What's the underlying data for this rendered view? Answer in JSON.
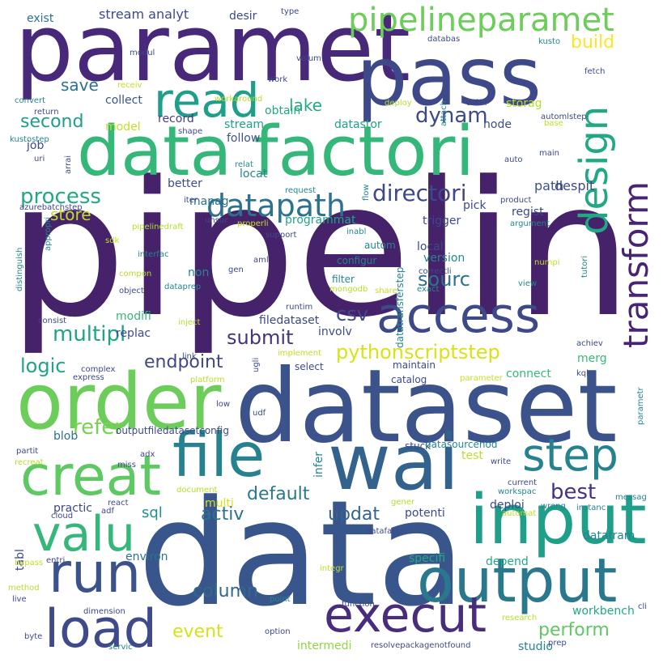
{
  "words": [
    {
      "text": "pipelin",
      "color": "#46226b"
    },
    {
      "text": "data",
      "color": "#39568c"
    },
    {
      "text": "dataset",
      "color": "#3b528b"
    },
    {
      "text": "paramet",
      "color": "#482878"
    },
    {
      "text": "pass",
      "color": "#3e4989"
    },
    {
      "text": "data factori",
      "color": "#35b779"
    },
    {
      "text": "order",
      "color": "#6ccd5a"
    },
    {
      "text": "wai",
      "color": "#33638d"
    },
    {
      "text": "file",
      "color": "#26828e"
    },
    {
      "text": "input",
      "color": "#1f9e89"
    },
    {
      "text": "output",
      "color": "#2a788e"
    },
    {
      "text": "creat",
      "color": "#5ec962"
    },
    {
      "text": "run",
      "color": "#3b528b"
    },
    {
      "text": "valu",
      "color": "#35b779"
    },
    {
      "text": "load",
      "color": "#3e4a89"
    },
    {
      "text": "execut",
      "color": "#472d7b"
    },
    {
      "text": "step",
      "color": "#26828e"
    },
    {
      "text": "access",
      "color": "#3e4989"
    },
    {
      "text": "read",
      "color": "#1f9e89"
    },
    {
      "text": "design",
      "color": "#22a884"
    },
    {
      "text": "transform",
      "color": "#482475"
    },
    {
      "text": "pipelineparamet",
      "color": "#6ccd5a"
    },
    {
      "text": "datapath",
      "color": "#2c728e"
    },
    {
      "text": "directori",
      "color": "#3e4989"
    },
    {
      "text": "process",
      "color": "#22a884"
    },
    {
      "text": "multipl",
      "color": "#20a486"
    },
    {
      "text": "submit",
      "color": "#46337f"
    },
    {
      "text": "pythonscriptstep",
      "color": "#d8e219"
    },
    {
      "text": "csv",
      "color": "#3e4989"
    },
    {
      "text": "logic",
      "color": "#20a486"
    },
    {
      "text": "endpoint",
      "color": "#404688"
    },
    {
      "text": "refer",
      "color": "#7ad151"
    },
    {
      "text": "default",
      "color": "#2a788e"
    },
    {
      "text": "best",
      "color": "#46337f"
    },
    {
      "text": "activ",
      "color": "#2c728e"
    },
    {
      "text": "updat",
      "color": "#33638d"
    },
    {
      "text": "sql",
      "color": "#21918c"
    },
    {
      "text": "column",
      "color": "#31688e"
    },
    {
      "text": "event",
      "color": "#d8e219"
    },
    {
      "text": "perform",
      "color": "#5ec962"
    },
    {
      "text": "dynam",
      "color": "#3e4989"
    },
    {
      "text": "lake",
      "color": "#22a884"
    },
    {
      "text": "save",
      "color": "#2c728e"
    },
    {
      "text": "second",
      "color": "#1f9e89"
    },
    {
      "text": "build",
      "color": "#fde725"
    },
    {
      "text": "stream analyt",
      "color": "#3e4989"
    },
    {
      "text": "store",
      "color": "#bddf26"
    },
    {
      "text": "sourc",
      "color": "#2c728e"
    },
    {
      "text": "path",
      "color": "#3b528b"
    },
    {
      "text": "despit",
      "color": "#3e4989"
    },
    {
      "text": "storag",
      "color": "#b5de2b"
    },
    {
      "text": "collect",
      "color": "#39568c"
    },
    {
      "text": "record",
      "color": "#433e85"
    },
    {
      "text": "obtain",
      "color": "#22a884"
    },
    {
      "text": "stream",
      "color": "#1f9e89"
    },
    {
      "text": "datastor",
      "color": "#1f9e89"
    },
    {
      "text": "node",
      "color": "#3e4989"
    },
    {
      "text": "follow",
      "color": "#3b528b"
    },
    {
      "text": "locat",
      "color": "#25858e"
    },
    {
      "text": "better",
      "color": "#3e4989"
    },
    {
      "text": "manag",
      "color": "#2c728e"
    },
    {
      "text": "programmat",
      "color": "#20a486"
    },
    {
      "text": "trigger",
      "color": "#3e4989"
    },
    {
      "text": "pick",
      "color": "#3e4989"
    },
    {
      "text": "regist",
      "color": "#3e4989"
    },
    {
      "text": "local",
      "color": "#3e4989"
    },
    {
      "text": "version",
      "color": "#25858e"
    },
    {
      "text": "modifi",
      "color": "#35b779"
    },
    {
      "text": "model",
      "color": "#c2df23"
    },
    {
      "text": "exist",
      "color": "#2c728e"
    },
    {
      "text": "desir",
      "color": "#3e4989"
    },
    {
      "text": "job",
      "color": "#3e4989"
    },
    {
      "text": "filedataset",
      "color": "#3e4989"
    },
    {
      "text": "involv",
      "color": "#3e4989"
    },
    {
      "text": "replac",
      "color": "#3e4989"
    },
    {
      "text": "merg",
      "color": "#38b977"
    },
    {
      "text": "connect",
      "color": "#38b977"
    },
    {
      "text": "select",
      "color": "#3e4989"
    },
    {
      "text": "maintain",
      "color": "#3e4989"
    },
    {
      "text": "catalog",
      "color": "#3e4989"
    },
    {
      "text": "outputfiledatasetconfig",
      "color": "#3e4989"
    },
    {
      "text": "blob",
      "color": "#2c728e"
    },
    {
      "text": "practic",
      "color": "#3e4989"
    },
    {
      "text": "multi",
      "color": "#d8e219"
    },
    {
      "text": "environ",
      "color": "#2c728e"
    },
    {
      "text": "deploi",
      "color": "#3e4989"
    },
    {
      "text": "potenti",
      "color": "#3e4989"
    },
    {
      "text": "specifi",
      "color": "#22a884"
    },
    {
      "text": "depend",
      "color": "#22a884"
    },
    {
      "text": "datafram",
      "color": "#25858e"
    },
    {
      "text": "workbench",
      "color": "#22a884"
    },
    {
      "text": "studio",
      "color": "#25858e"
    },
    {
      "text": "intermedi",
      "color": "#8fd744"
    },
    {
      "text": "test",
      "color": "#bddf26"
    },
    {
      "text": "tabl",
      "color": "#3e4989"
    },
    {
      "text": "non",
      "color": "#25858e"
    },
    {
      "text": "infer",
      "color": "#25858e"
    },
    {
      "text": "stuck",
      "color": "#3e4989"
    },
    {
      "text": "datasourcenod",
      "color": "#25858e"
    },
    {
      "text": "datatransferstep",
      "color": "#25858e"
    },
    {
      "text": "autom",
      "color": "#25858e"
    },
    {
      "text": "filter",
      "color": "#25858e"
    },
    {
      "text": "configur",
      "color": "#25858e"
    },
    {
      "text": "mongodb",
      "color": "#b5de2b"
    },
    {
      "text": "share",
      "color": "#c2df23"
    },
    {
      "text": "exact",
      "color": "#25858e"
    },
    {
      "text": "runtim",
      "color": "#3e4989"
    },
    {
      "text": "view",
      "color": "#25858e"
    },
    {
      "text": "numpi",
      "color": "#c2df23"
    },
    {
      "text": "tutori",
      "color": "#25858e"
    },
    {
      "text": "achiev",
      "color": "#3e4989"
    },
    {
      "text": "argument",
      "color": "#25858e"
    },
    {
      "text": "product",
      "color": "#3e4989"
    },
    {
      "text": "auto",
      "color": "#3e4989"
    },
    {
      "text": "main",
      "color": "#3e4989"
    },
    {
      "text": "automlstep",
      "color": "#3e4989"
    },
    {
      "text": "base",
      "color": "#c2df23"
    },
    {
      "text": "kusto",
      "color": "#25858e"
    },
    {
      "text": "fetch",
      "color": "#3e4989"
    },
    {
      "text": "group",
      "color": "#3e4989"
    },
    {
      "text": "attach",
      "color": "#25858e"
    },
    {
      "text": "deploy",
      "color": "#b5de2b"
    },
    {
      "text": "databas",
      "color": "#3e4989"
    },
    {
      "text": "volum",
      "color": "#3e4989"
    },
    {
      "text": "work",
      "color": "#3e4989"
    },
    {
      "text": "type",
      "color": "#3e4989"
    },
    {
      "text": "workaround",
      "color": "#b5de2b"
    },
    {
      "text": "receiv",
      "color": "#c2df23"
    },
    {
      "text": "modul",
      "color": "#3e4989"
    },
    {
      "text": "convert",
      "color": "#25858e"
    },
    {
      "text": "return",
      "color": "#3e4989"
    },
    {
      "text": "shape",
      "color": "#3e4989"
    },
    {
      "text": "kustostep",
      "color": "#25858e"
    },
    {
      "text": "uri",
      "color": "#3e4989"
    },
    {
      "text": "arrai",
      "color": "#3e4989"
    },
    {
      "text": "relat",
      "color": "#25858e"
    },
    {
      "text": "request",
      "color": "#25858e"
    },
    {
      "text": "azurebatchstep",
      "color": "#3e4989"
    },
    {
      "text": "iter",
      "color": "#3e4989"
    },
    {
      "text": "flow",
      "color": "#25858e"
    },
    {
      "text": "pipelinedraft",
      "color": "#b5de2b"
    },
    {
      "text": "properli",
      "color": "#c2df23"
    },
    {
      "text": "inabl",
      "color": "#25858e"
    },
    {
      "text": "sdk",
      "color": "#c2df23"
    },
    {
      "text": "unsur",
      "color": "#3e4989"
    },
    {
      "text": "support",
      "color": "#3e4989"
    },
    {
      "text": "appropri",
      "color": "#25858e"
    },
    {
      "text": "interfac",
      "color": "#25858e"
    },
    {
      "text": "aml",
      "color": "#3e4989"
    },
    {
      "text": "gen",
      "color": "#3e4989"
    },
    {
      "text": "compon",
      "color": "#b5de2b"
    },
    {
      "text": "correctli",
      "color": "#3e4989"
    },
    {
      "text": "distinguish",
      "color": "#25858e"
    },
    {
      "text": "object",
      "color": "#3e4989"
    },
    {
      "text": "dataprep",
      "color": "#25858e"
    },
    {
      "text": "consist",
      "color": "#3e4989"
    },
    {
      "text": "inject",
      "color": "#b5de2b"
    },
    {
      "text": "implement",
      "color": "#c2df23"
    },
    {
      "text": "link",
      "color": "#3e4989"
    },
    {
      "text": "complex",
      "color": "#3e4989"
    },
    {
      "text": "express",
      "color": "#3e4989"
    },
    {
      "text": "platform",
      "color": "#b5de2b"
    },
    {
      "text": "ugli",
      "color": "#3e4989"
    },
    {
      "text": "parameter",
      "color": "#c2df23"
    },
    {
      "text": "kql",
      "color": "#3e4989"
    },
    {
      "text": "low",
      "color": "#3e4989"
    },
    {
      "text": "udf",
      "color": "#3e4989"
    },
    {
      "text": "parametr",
      "color": "#25858e"
    },
    {
      "text": "partit",
      "color": "#3e4989"
    },
    {
      "text": "recreat",
      "color": "#b5de2b"
    },
    {
      "text": "adx",
      "color": "#3e4989"
    },
    {
      "text": "miss",
      "color": "#3e4989"
    },
    {
      "text": "document",
      "color": "#b5de2b"
    },
    {
      "text": "write",
      "color": "#3e4989"
    },
    {
      "text": "current",
      "color": "#3e4989"
    },
    {
      "text": "workspac",
      "color": "#25858e"
    },
    {
      "text": "messag",
      "color": "#25858e"
    },
    {
      "text": "adf",
      "color": "#3e4989"
    },
    {
      "text": "react",
      "color": "#3e4989"
    },
    {
      "text": "gener",
      "color": "#b5de2b"
    },
    {
      "text": "automat",
      "color": "#c2df23"
    },
    {
      "text": "wrong",
      "color": "#25858e"
    },
    {
      "text": "instanc",
      "color": "#25858e"
    },
    {
      "text": "cloud",
      "color": "#3e4989"
    },
    {
      "text": "datafactori",
      "color": "#3e4989"
    },
    {
      "text": "bypass",
      "color": "#c2df23"
    },
    {
      "text": "entri",
      "color": "#3e4989"
    },
    {
      "text": "integr",
      "color": "#c2df23"
    },
    {
      "text": "method",
      "color": "#b5de2b"
    },
    {
      "text": "live",
      "color": "#3e4989"
    },
    {
      "text": "point",
      "color": "#25858e"
    },
    {
      "text": "function",
      "color": "#3e4989"
    },
    {
      "text": "dimension",
      "color": "#3e4989"
    },
    {
      "text": "research",
      "color": "#b5de2b"
    },
    {
      "text": "cli",
      "color": "#3e4989"
    },
    {
      "text": "byte",
      "color": "#3e4989"
    },
    {
      "text": "option",
      "color": "#3e4989"
    },
    {
      "text": "servic",
      "color": "#25858e"
    },
    {
      "text": "resolvepackagenotfound",
      "color": "#3e4989"
    },
    {
      "text": "prep",
      "color": "#3e4989"
    }
  ]
}
